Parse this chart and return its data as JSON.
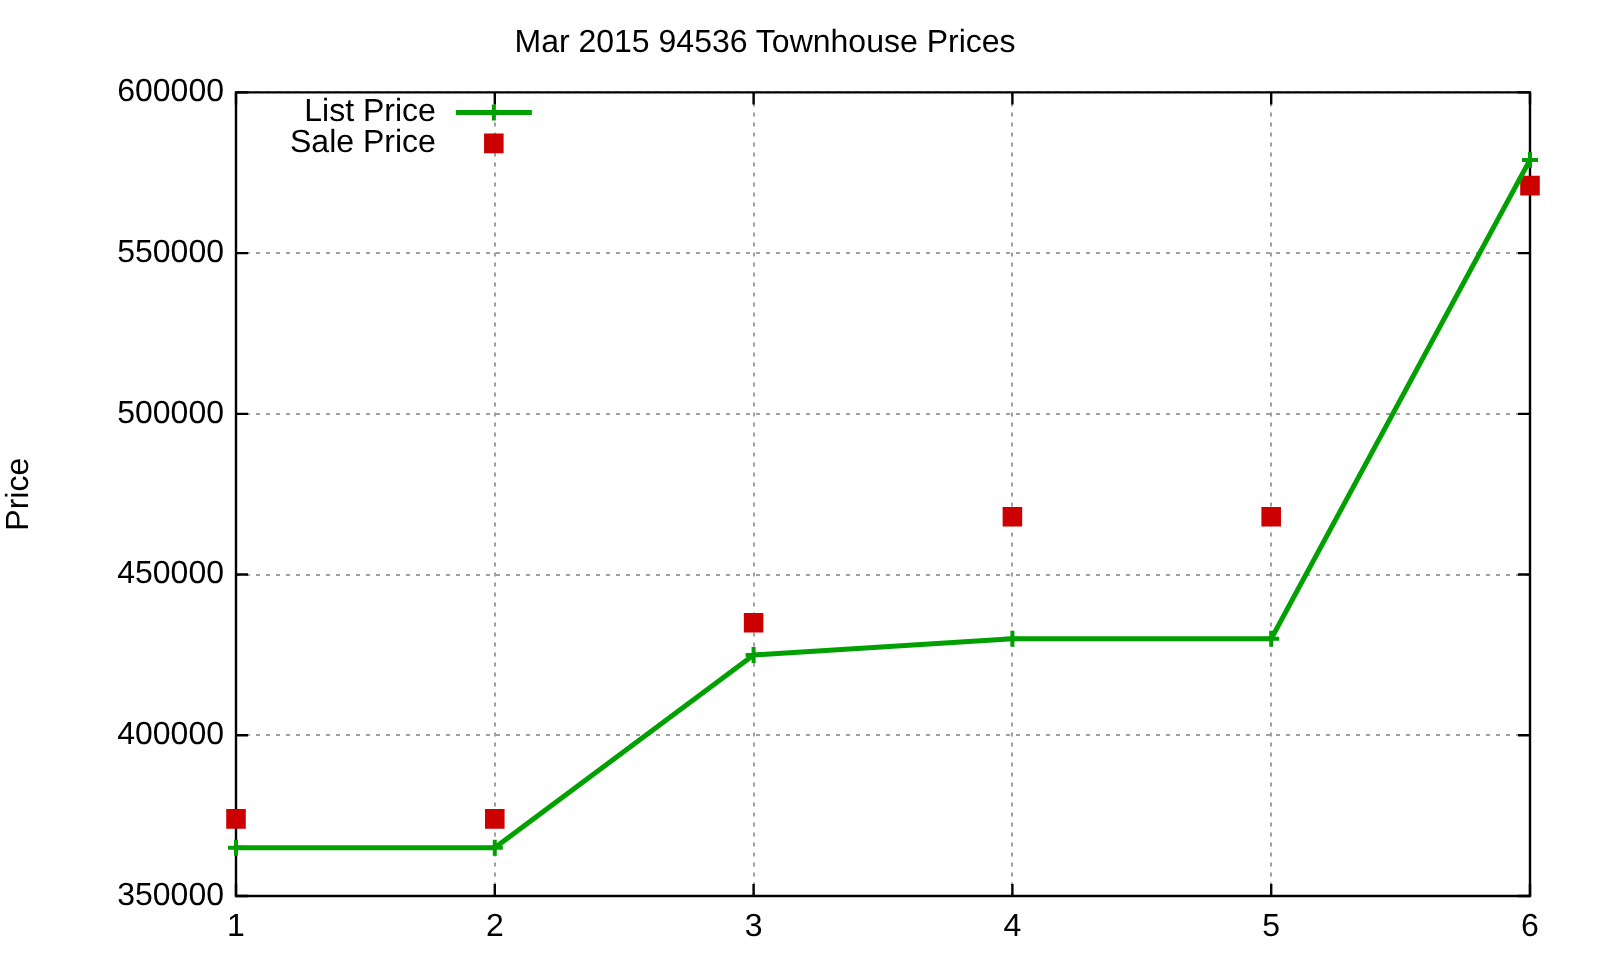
{
  "chart_data": {
    "type": "line",
    "title": "Mar 2015 94536 Townhouse Prices",
    "ylabel": "Price",
    "x": [
      1,
      2,
      3,
      4,
      5,
      6
    ],
    "series": [
      {
        "name": "List Price",
        "color": "#00a000",
        "marker": "cross",
        "values": [
          365000,
          365000,
          425000,
          430000,
          430000,
          579000
        ]
      },
      {
        "name": "Sale Price",
        "type": "scatter",
        "color": "#cc0000",
        "marker": "square",
        "values": [
          374000,
          374000,
          435000,
          468000,
          468000,
          571000
        ]
      }
    ],
    "xlim": [
      1,
      6
    ],
    "xticks": [
      1,
      2,
      3,
      4,
      5,
      6
    ],
    "ylim": [
      350000,
      600000
    ],
    "yticks": [
      350000,
      400000,
      450000,
      500000,
      550000,
      600000
    ],
    "grid": true,
    "legend": "top left"
  }
}
